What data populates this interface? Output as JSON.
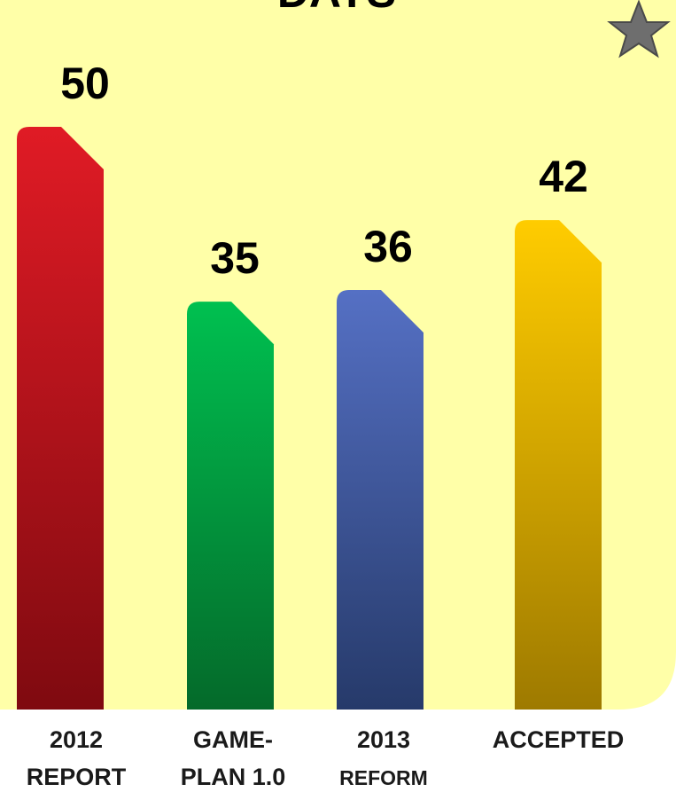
{
  "chart_data": {
    "type": "bar",
    "title": "DAYS",
    "categories": [
      {
        "lines": [
          "2012",
          "REPORT"
        ]
      },
      {
        "lines": [
          "GAME-",
          "PLAN 1.0"
        ]
      },
      {
        "lines": [
          "2013",
          "REFORM"
        ]
      },
      {
        "lines": [
          "ACCEPTED"
        ]
      }
    ],
    "values": [
      50,
      35,
      36,
      42
    ],
    "value_labels": [
      "50",
      "35",
      "36",
      "42"
    ],
    "ylim": [
      0,
      50
    ],
    "grid": false,
    "colors": {
      "panel": "#ffffa8",
      "bars": [
        {
          "top": "#e01b25",
          "bottom": "#7f0a10"
        },
        {
          "top": "#00c050",
          "bottom": "#046a2a"
        },
        {
          "top": "#5570c4",
          "bottom": "#263a6a"
        },
        {
          "top": "#ffcc00",
          "bottom": "#9e7a00"
        }
      ],
      "star": "#6e6e6e"
    },
    "icons": [
      "star-icon"
    ]
  }
}
